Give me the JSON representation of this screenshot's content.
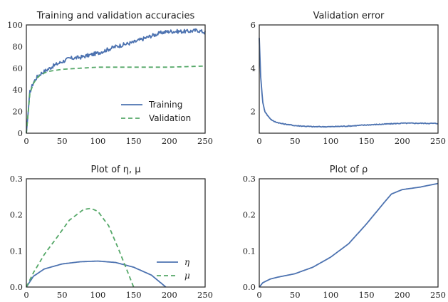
{
  "chart_data": [
    {
      "type": "line",
      "title": "Training and validation accuracies",
      "xlabel": "",
      "ylabel": "",
      "xlim": [
        0,
        250
      ],
      "ylim": [
        0,
        100
      ],
      "xticks": [
        "0",
        "50",
        "100",
        "150",
        "200",
        "250"
      ],
      "yticks": [
        "0",
        "20",
        "40",
        "60",
        "80",
        "100"
      ],
      "grid": false,
      "legend": "bottom-right",
      "series": [
        {
          "name": "Training",
          "style": "solid",
          "color": "#4c72b0",
          "noisy": true,
          "x": [
            0,
            5,
            10,
            15,
            20,
            30,
            40,
            50,
            60,
            75,
            100,
            125,
            150,
            175,
            190,
            200,
            210,
            225,
            240,
            250
          ],
          "y": [
            0,
            38,
            47,
            52,
            55,
            59,
            63,
            66,
            69,
            70,
            74,
            80,
            84,
            90,
            93,
            94,
            94,
            94,
            95,
            93
          ]
        },
        {
          "name": "Validation",
          "style": "dashed",
          "color": "#55a868",
          "x": [
            0,
            5,
            10,
            15,
            20,
            30,
            40,
            50,
            75,
            100,
            125,
            150,
            200,
            250
          ],
          "y": [
            0,
            37,
            46,
            51,
            54,
            57,
            58,
            59,
            60,
            61,
            61,
            61,
            61,
            62
          ]
        }
      ]
    },
    {
      "type": "line",
      "title": "Validation error",
      "xlabel": "",
      "ylabel": "",
      "xlim": [
        0,
        250
      ],
      "ylim": [
        1,
        6
      ],
      "xticks": [
        "0",
        "50",
        "100",
        "150",
        "200",
        "250"
      ],
      "yticks": [
        "2",
        "4",
        "6"
      ],
      "grid": false,
      "series": [
        {
          "style": "solid",
          "color": "#4c72b0",
          "noisy": true,
          "x": [
            0,
            2,
            5,
            8,
            12,
            16,
            20,
            30,
            40,
            50,
            75,
            100,
            125,
            150,
            175,
            200,
            225,
            250
          ],
          "y": [
            5.4,
            3.6,
            2.4,
            2.0,
            1.8,
            1.65,
            1.55,
            1.45,
            1.4,
            1.35,
            1.3,
            1.3,
            1.33,
            1.38,
            1.42,
            1.46,
            1.46,
            1.45
          ]
        }
      ]
    },
    {
      "type": "line",
      "title": "Plot of η, μ",
      "xlabel": "",
      "ylabel": "",
      "xlim": [
        0,
        250
      ],
      "ylim": [
        0,
        0.3
      ],
      "xticks": [
        "0",
        "50",
        "100",
        "150",
        "200",
        "250"
      ],
      "yticks": [
        "0.0",
        "0.1",
        "0.2",
        "0.3"
      ],
      "grid": false,
      "legend": "bottom-right",
      "series": [
        {
          "name": "η",
          "style": "solid",
          "color": "#4c72b0",
          "x": [
            0,
            10,
            25,
            50,
            75,
            100,
            125,
            150,
            175,
            195
          ],
          "y": [
            0,
            0.03,
            0.05,
            0.064,
            0.07,
            0.072,
            0.068,
            0.055,
            0.033,
            0
          ]
        },
        {
          "name": "μ",
          "style": "dashed",
          "color": "#55a868",
          "x": [
            0,
            10,
            25,
            40,
            60,
            80,
            90,
            100,
            115,
            130,
            140,
            150
          ],
          "y": [
            0,
            0.04,
            0.09,
            0.13,
            0.185,
            0.215,
            0.218,
            0.21,
            0.17,
            0.1,
            0.05,
            0
          ]
        }
      ]
    },
    {
      "type": "line",
      "title": "Plot of ρ",
      "xlabel": "",
      "ylabel": "",
      "xlim": [
        0,
        250
      ],
      "ylim": [
        0,
        0.3
      ],
      "xticks": [
        "0",
        "50",
        "100",
        "150",
        "200",
        "250"
      ],
      "yticks": [
        "0.0",
        "0.1",
        "0.2",
        "0.3"
      ],
      "grid": false,
      "series": [
        {
          "style": "solid",
          "color": "#4c72b0",
          "x": [
            0,
            5,
            15,
            25,
            50,
            75,
            100,
            125,
            150,
            175,
            185,
            200,
            225,
            250
          ],
          "y": [
            0,
            0.012,
            0.022,
            0.027,
            0.037,
            0.055,
            0.083,
            0.12,
            0.175,
            0.235,
            0.258,
            0.27,
            0.277,
            0.287
          ]
        }
      ]
    }
  ]
}
